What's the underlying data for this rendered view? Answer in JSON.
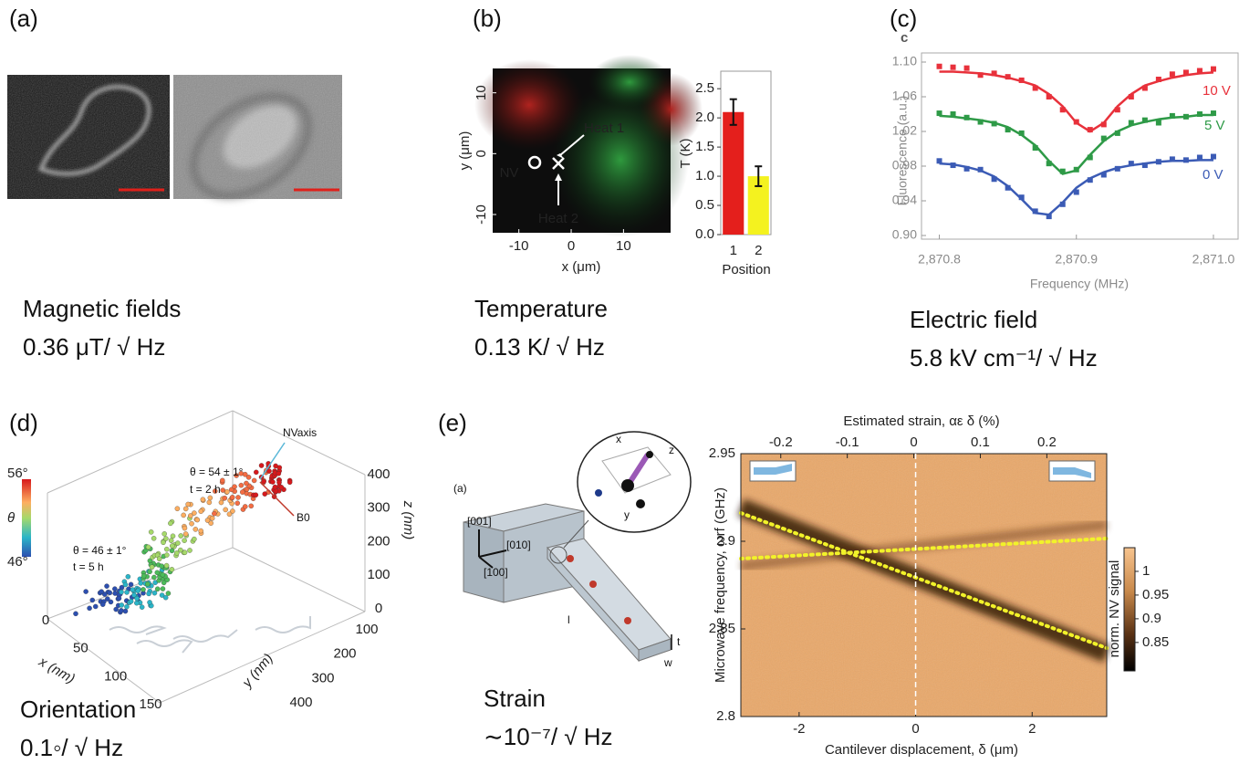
{
  "panels": [
    {
      "label": "(a)",
      "caption": [
        "Magnetic fields",
        "0.36 μT/ √ Hz"
      ]
    },
    {
      "label": "(b)",
      "caption": [
        "Temperature",
        "0.13 K/ √ Hz"
      ]
    },
    {
      "label": "(c)",
      "caption": [
        "Electric field",
        "5.8 kV cm⁻¹/ √ Hz"
      ]
    },
    {
      "label": "(d)",
      "caption": [
        "Orientation",
        "0.1◦/ √ Hz"
      ]
    },
    {
      "label": "(e)",
      "caption": [
        "Strain",
        "∼10⁻⁷/ √ Hz"
      ]
    }
  ],
  "schematic": {
    "tag": "(a)",
    "labels": [
      "[001]",
      "[010]",
      "[100]",
      "l",
      "t",
      "w",
      "x",
      "y",
      "z"
    ]
  },
  "chart_data": [
    {
      "type": "map",
      "xlabel": "x (μm)",
      "ylabel": "y (μm)",
      "xlim": [
        -15,
        19
      ],
      "ylim": [
        -13,
        14
      ],
      "xticks": [
        -10,
        0,
        10
      ],
      "yticks": [
        -10,
        0,
        10
      ],
      "annotations": [
        "Heat 1",
        "NV",
        "Heat 2"
      ]
    },
    {
      "type": "bar",
      "xlabel": "Position",
      "ylabel": "T (K)",
      "categories": [
        "1",
        "2"
      ],
      "values": [
        2.1,
        1.0
      ],
      "errors": [
        0.22,
        0.17
      ],
      "colors": [
        "#e41f1c",
        "#f4f21f"
      ],
      "ylim": [
        0,
        2.8
      ],
      "yticks": [
        {
          "value": 0,
          "label": "0.0"
        },
        0.5,
        {
          "value": 1,
          "label": "1.0"
        },
        1.5,
        {
          "value": 2,
          "label": "2.0"
        },
        2.5
      ]
    },
    {
      "type": "line",
      "tag": "c",
      "xlabel": "Frequency (MHz)",
      "ylabel": "Fluorescence (a.u.)",
      "xlim": [
        2870.787,
        2871.018
      ],
      "xticks": [
        {
          "value": 2870.8,
          "label": "2,870.8"
        },
        {
          "value": 2870.9,
          "label": "2,870.9"
        },
        {
          "value": 2871,
          "label": "2,871.0"
        }
      ],
      "ylim": [
        0.9,
        1.1
      ],
      "yticks": [
        {
          "value": 0.9,
          "label": "0.90"
        },
        0.94,
        0.98,
        1.02,
        1.06,
        {
          "value": 1.1,
          "label": "1.10"
        }
      ],
      "x": [
        2870.8,
        2870.81,
        2870.82,
        2870.83,
        2870.84,
        2870.85,
        2870.86,
        2870.87,
        2870.88,
        2870.89,
        2870.9,
        2870.91,
        2870.92,
        2870.93,
        2870.94,
        2870.95,
        2870.96,
        2870.97,
        2870.98,
        2870.99,
        2871
      ],
      "series": [
        {
          "name": "10 V",
          "color": "#e8313b",
          "values": [
            1.095,
            1.094,
            1.093,
            1.085,
            1.087,
            1.083,
            1.079,
            1.07,
            1.06,
            1.045,
            1.031,
            1.022,
            1.028,
            1.045,
            1.06,
            1.07,
            1.08,
            1.086,
            1.088,
            1.09,
            1.092
          ],
          "fit": [
            1.089,
            1.089,
            1.088,
            1.087,
            1.085,
            1.082,
            1.078,
            1.073,
            1.063,
            1.049,
            1.03,
            1.02,
            1.03,
            1.049,
            1.063,
            1.073,
            1.078,
            1.082,
            1.085,
            1.087,
            1.088
          ]
        },
        {
          "name": "5 V",
          "color": "#2e9a47",
          "values": [
            1.041,
            1.04,
            1.036,
            1.031,
            1.029,
            1.022,
            1.018,
            1.001,
            0.983,
            0.974,
            0.976,
            0.99,
            1.012,
            1.018,
            1.03,
            1.033,
            1.03,
            1.038,
            1.037,
            1.04,
            1.041
          ],
          "fit": [
            1.038,
            1.037,
            1.035,
            1.033,
            1.03,
            1.025,
            1.016,
            1.004,
            0.986,
            0.971,
            0.975,
            0.993,
            1.009,
            1.02,
            1.027,
            1.031,
            1.034,
            1.036,
            1.037,
            1.039,
            1.039
          ]
        },
        {
          "name": "0 V",
          "color": "#3b5bb5",
          "values": [
            0.986,
            0.981,
            0.977,
            0.976,
            0.965,
            0.955,
            0.944,
            0.928,
            0.922,
            0.936,
            0.95,
            0.964,
            0.97,
            0.977,
            0.983,
            0.981,
            0.985,
            0.988,
            0.987,
            0.99,
            0.991
          ],
          "fit": [
            0.983,
            0.982,
            0.979,
            0.975,
            0.968,
            0.957,
            0.942,
            0.926,
            0.924,
            0.938,
            0.955,
            0.966,
            0.973,
            0.978,
            0.981,
            0.983,
            0.985,
            0.986,
            0.986,
            0.987,
            0.987
          ]
        }
      ]
    },
    {
      "type": "scatter3d",
      "xlabel": "x (nm)",
      "ylabel": "y (nm)",
      "zlabel": "z (nm)",
      "xlim": [
        0,
        150
      ],
      "ylim": [
        100,
        400
      ],
      "zlim": [
        0,
        400
      ],
      "xticks": [
        0,
        50,
        100,
        150
      ],
      "yticks": [
        100,
        200,
        300,
        400
      ],
      "zticks": [
        0,
        100,
        200,
        300,
        400
      ],
      "colorbar": {
        "label": "θ",
        "lim": [
          46,
          56
        ],
        "ticks": [
          {
            "value": 46,
            "label": "46°"
          },
          {
            "value": 56,
            "label": "56°"
          }
        ]
      },
      "annotations": [
        "θ = 54 ± 1°",
        "t = 2 h",
        "θ = 46 ± 1°",
        "t = 5 h",
        "NVaxis",
        "B0"
      ]
    },
    {
      "type": "heatmap",
      "xlabel": "Cantilever displacement, δ (μm)",
      "ylabel": "Microwave frequency, ωrf (GHz)",
      "x2label": "Estimated strain, αε δ (%)",
      "xlim": [
        -3.0,
        3.28
      ],
      "xticks": [
        -2,
        0,
        2
      ],
      "x2lim": [
        -0.26,
        0.29
      ],
      "x2ticks": [
        -0.2,
        -0.1,
        0,
        0.1,
        0.2
      ],
      "ylim": [
        2.8,
        2.95
      ],
      "yticks": [
        2.8,
        2.85,
        2.9,
        2.95
      ],
      "colorbar": {
        "label": "norm. NV signal",
        "lim": [
          0.79,
          1.05
        ],
        "ticks": [
          0.85,
          0.9,
          0.95,
          1
        ]
      }
    }
  ]
}
